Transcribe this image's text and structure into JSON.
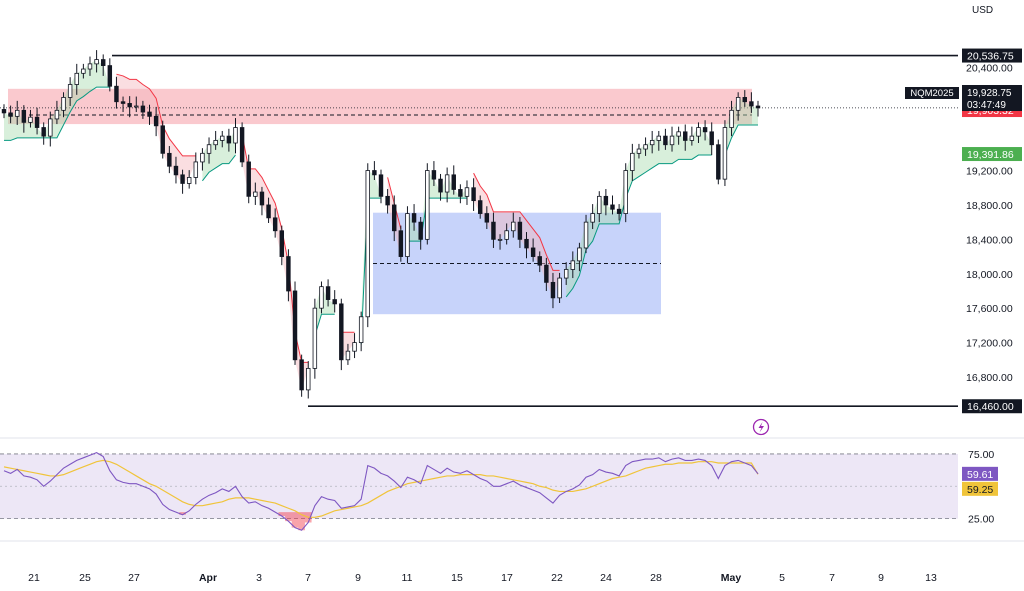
{
  "currency": "USD",
  "symbol": "NQM2025",
  "current_price": "19,928.75",
  "countdown": "03:47:49",
  "colors": {
    "up": "#089981",
    "down": "#f23645",
    "candle": "#131722",
    "resistance_zone": "#f7a5ad",
    "range_box": "#8fa8f5",
    "trail_up": "#a8dcb0",
    "trail_down": "#f5b6bc",
    "rsi": "#7e57c2",
    "rsi_ma": "#f0c43a",
    "rsi_band": "#ede7f6"
  },
  "chart_data": [
    {
      "type": "candlestick",
      "ylim": [
        16300,
        20950
      ],
      "x_ticks": [
        "21",
        "25",
        "27",
        "Apr",
        "3",
        "7",
        "9",
        "11",
        "15",
        "17",
        "22",
        "24",
        "28",
        "May",
        "5",
        "7",
        "9",
        "13"
      ],
      "y_ticks": [
        "20,400.00",
        "19,200.00",
        "18,800.00",
        "18,400.00",
        "18,000.00",
        "17,600.00",
        "17,200.00",
        "16,800.00"
      ],
      "horizontal_levels": [
        {
          "label": "20,536.75",
          "value": 20536.75
        },
        {
          "label": "16,460.00",
          "value": 16460
        }
      ],
      "price_labels": [
        {
          "label": "19,903.32",
          "value": 19903.32,
          "color": "#f23645"
        },
        {
          "label": "19,391.86",
          "value": 19391.86,
          "color": "#4caf50"
        }
      ],
      "resistance_zone": {
        "from": 19740,
        "to": 20150
      },
      "dashed_level": 19845,
      "range_box": {
        "from": 17530,
        "to": 18710,
        "mid": 18120
      },
      "closes": [
        19870,
        19830,
        19900,
        19760,
        19820,
        19700,
        19600,
        19800,
        19900,
        20050,
        20200,
        20330,
        20380,
        20440,
        20490,
        20420,
        20180,
        20000,
        19980,
        19940,
        19950,
        19880,
        19830,
        19720,
        19400,
        19250,
        19150,
        19050,
        19120,
        19300,
        19400,
        19500,
        19550,
        19600,
        19520,
        19700,
        19300,
        18900,
        18950,
        18800,
        18650,
        18500,
        18200,
        17800,
        17000,
        16650,
        16900,
        17600,
        17850,
        17700,
        17650,
        17000,
        17100,
        17200,
        17500,
        19200,
        19150,
        18900,
        18800,
        18500,
        18200,
        18700,
        18600,
        18400,
        19200,
        19100,
        18950,
        19150,
        18980,
        18900,
        19000,
        18850,
        18700,
        18600,
        18400,
        18400,
        18500,
        18600,
        18400,
        18300,
        18200,
        18100,
        17900,
        17720,
        17950,
        18050,
        18150,
        18300,
        18600,
        18700,
        18900,
        18800,
        18750,
        18700,
        19200,
        19400,
        19450,
        19500,
        19550,
        19600,
        19500,
        19600,
        19650,
        19550,
        19600,
        19700,
        19650,
        19500,
        19100,
        19700,
        19900,
        20050,
        20000,
        19950,
        19928.75
      ],
      "rsi": {
        "levels": [
          "75.00",
          "25.00"
        ],
        "rsi_label": "59.61",
        "ma_label": "59.25",
        "range": [
          10,
          85
        ],
        "values": [
          62,
          60,
          63,
          58,
          57,
          55,
          50,
          54,
          59,
          64,
          67,
          70,
          72,
          74,
          76,
          73,
          62,
          55,
          53,
          52,
          52,
          50,
          48,
          44,
          36,
          32,
          30,
          28,
          31,
          36,
          40,
          43,
          45,
          48,
          46,
          50,
          42,
          37,
          38,
          35,
          33,
          30,
          27,
          23,
          18,
          16,
          22,
          35,
          42,
          40,
          39,
          33,
          34,
          35,
          40,
          66,
          64,
          60,
          58,
          54,
          49,
          57,
          55,
          52,
          66,
          63,
          60,
          64,
          61,
          60,
          62,
          59,
          56,
          54,
          50,
          50,
          52,
          54,
          51,
          49,
          47,
          45,
          41,
          37,
          43,
          46,
          48,
          51,
          57,
          59,
          63,
          61,
          60,
          58,
          66,
          69,
          70,
          71,
          71,
          72,
          69,
          71,
          72,
          70,
          70,
          71,
          70,
          66,
          56,
          66,
          69,
          70,
          68,
          66,
          59.61
        ],
        "ma": [
          65,
          64,
          63,
          62,
          61,
          60,
          59,
          58,
          58,
          59,
          61,
          63,
          65,
          67,
          69,
          70,
          69,
          67,
          64,
          61,
          58,
          55,
          52,
          50,
          47,
          44,
          41,
          38,
          36,
          35,
          35,
          36,
          37,
          38,
          40,
          41,
          41,
          41,
          40,
          39,
          38,
          37,
          35,
          33,
          31,
          28,
          26,
          26,
          27,
          29,
          31,
          32,
          33,
          34,
          35,
          37,
          40,
          43,
          46,
          48,
          50,
          52,
          53,
          54,
          55,
          56,
          57,
          58,
          58,
          59,
          59,
          59,
          59,
          58,
          58,
          57,
          56,
          55,
          54,
          53,
          52,
          50,
          49,
          47,
          46,
          46,
          46,
          47,
          48,
          50,
          52,
          54,
          56,
          57,
          58,
          60,
          62,
          64,
          65,
          66,
          67,
          67,
          68,
          68,
          68,
          69,
          69,
          69,
          68,
          68,
          68,
          68,
          68,
          68,
          59.25
        ]
      }
    }
  ]
}
